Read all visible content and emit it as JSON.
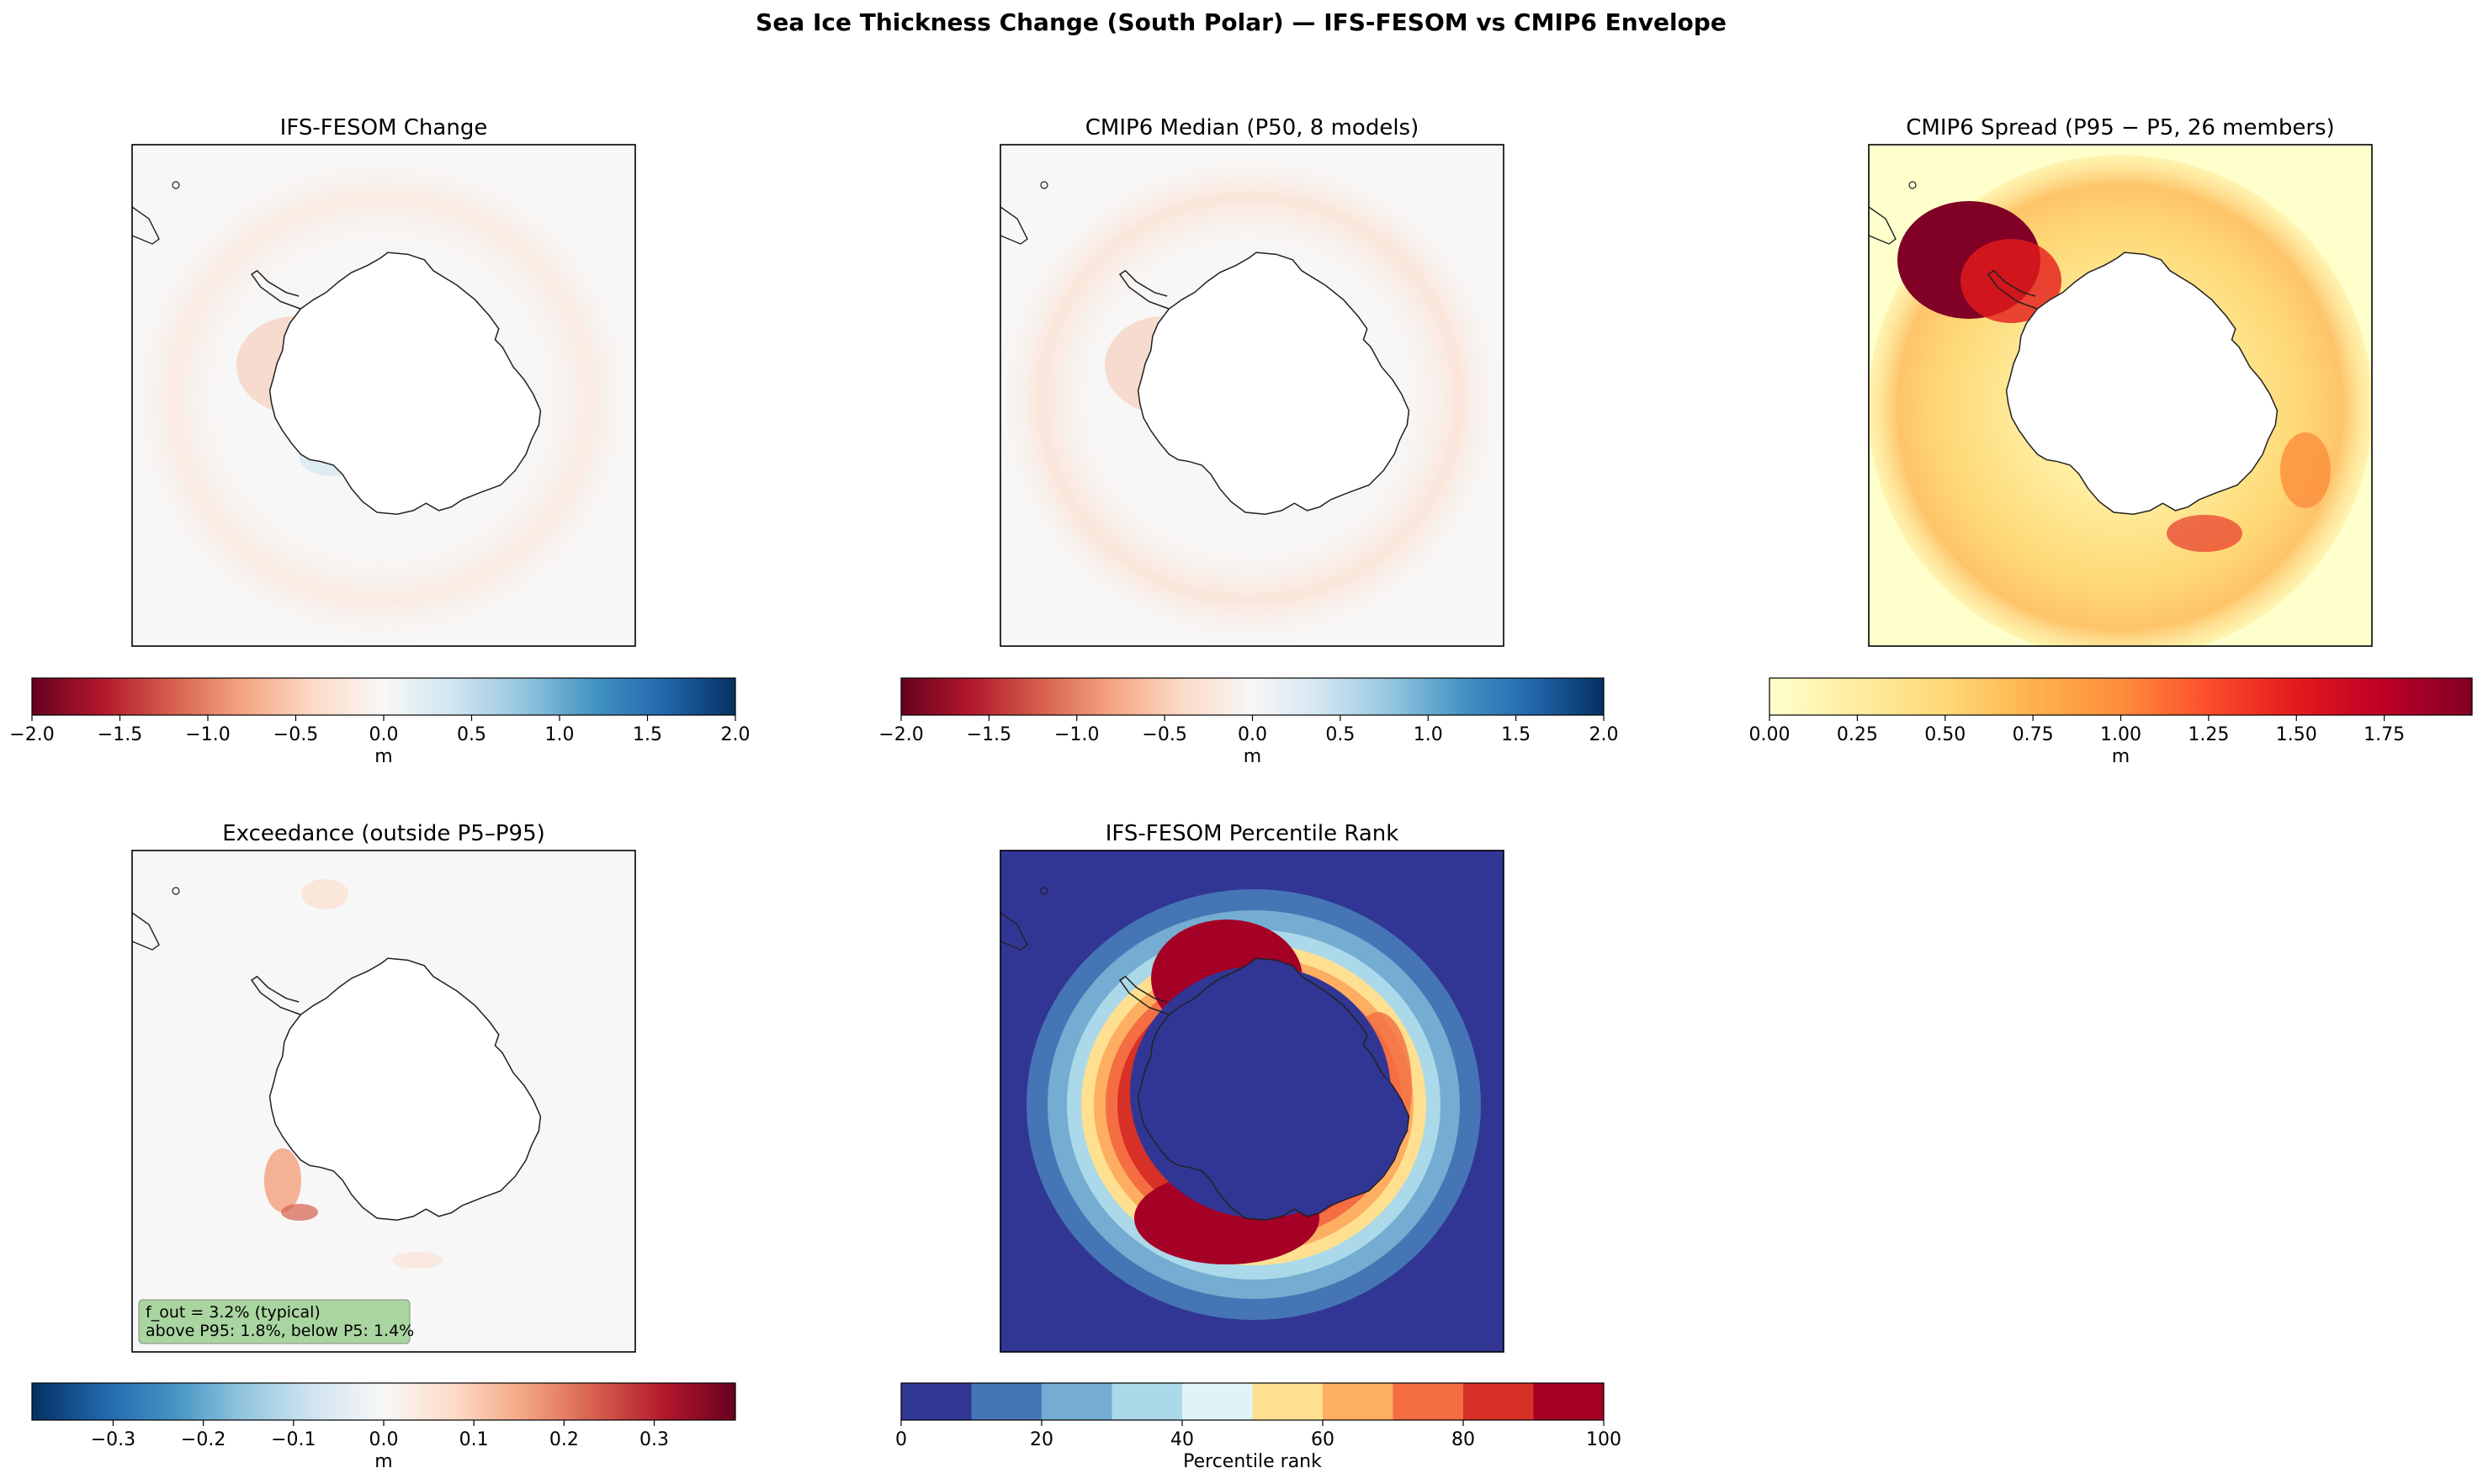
{
  "suptitle": "Sea Ice Thickness Change (South Polar) — IFS-FESOM vs CMIP6 Envelope",
  "chart_data": [
    {
      "type": "heatmap",
      "title": "IFS-FESOM Change",
      "colormap": "RdBu",
      "colors": [
        "#67001f",
        "#b2182b",
        "#d6604d",
        "#f4a582",
        "#fddbc7",
        "#f7f7f7",
        "#d1e5f0",
        "#92c5de",
        "#4393c3",
        "#2166ac",
        "#053061"
      ],
      "colorbar": {
        "label": "m",
        "range": [
          -2.0,
          2.0
        ],
        "ticks": [
          "−2.0",
          "−1.5",
          "−1.0",
          "−0.5",
          "0.0",
          "0.5",
          "1.0",
          "1.5",
          "2.0"
        ]
      }
    },
    {
      "type": "heatmap",
      "title": "CMIP6 Median (P50, 8 models)",
      "colormap": "RdBu",
      "colors": [
        "#67001f",
        "#b2182b",
        "#d6604d",
        "#f4a582",
        "#fddbc7",
        "#f7f7f7",
        "#d1e5f0",
        "#92c5de",
        "#4393c3",
        "#2166ac",
        "#053061"
      ],
      "colorbar": {
        "label": "m",
        "range": [
          -2.0,
          2.0
        ],
        "ticks": [
          "−2.0",
          "−1.5",
          "−1.0",
          "−0.5",
          "0.0",
          "0.5",
          "1.0",
          "1.5",
          "2.0"
        ]
      }
    },
    {
      "type": "heatmap",
      "title": "CMIP6 Spread (P95 − P5, 26 members)",
      "colormap": "YlOrRd",
      "colors": [
        "#ffffcc",
        "#ffeda0",
        "#fed976",
        "#feb24c",
        "#fd8d3c",
        "#fc4e2a",
        "#e31a1c",
        "#bd0026",
        "#800026"
      ],
      "colorbar": {
        "label": "m",
        "range": [
          0.0,
          2.0
        ],
        "ticks": [
          "0.00",
          "0.25",
          "0.50",
          "0.75",
          "1.00",
          "1.25",
          "1.50",
          "1.75"
        ]
      }
    },
    {
      "type": "heatmap",
      "title": "Exceedance (outside P5–P95)",
      "colormap": "RdBu_r",
      "colors": [
        "#053061",
        "#2166ac",
        "#4393c3",
        "#92c5de",
        "#d1e5f0",
        "#f7f7f7",
        "#fddbc7",
        "#f4a582",
        "#d6604d",
        "#b2182b",
        "#67001f"
      ],
      "annotation": [
        "f_out = 3.2% (typical)",
        "above P95: 1.8%, below P5: 1.4%"
      ],
      "colorbar": {
        "label": "m",
        "range": [
          -0.39,
          0.39
        ],
        "ticks": [
          "−0.3",
          "−0.2",
          "−0.1",
          "0.0",
          "0.1",
          "0.2",
          "0.3"
        ]
      }
    },
    {
      "type": "heatmap",
      "title": "IFS-FESOM Percentile Rank",
      "colormap": "RdYlBu_r (10 classes)",
      "colors": [
        "#313695",
        "#4575b4",
        "#74add1",
        "#abd9e9",
        "#e0f3f8",
        "#fee090",
        "#fdae61",
        "#f46d43",
        "#d73027",
        "#a50026"
      ],
      "colorbar": {
        "label": "Percentile rank",
        "range": [
          0,
          100
        ],
        "ticks": [
          "0",
          "20",
          "40",
          "60",
          "80",
          "100"
        ]
      }
    }
  ]
}
